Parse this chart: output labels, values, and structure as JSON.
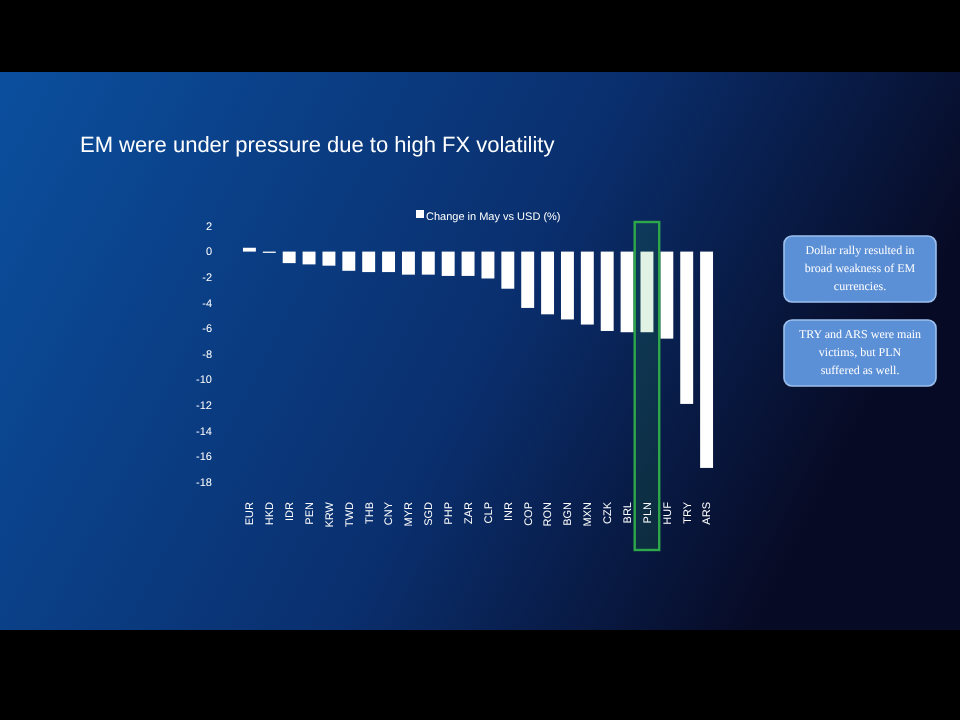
{
  "chart_data": {
    "type": "bar",
    "title": "EM were under pressure due to high FX volatility",
    "categories": [
      "EUR",
      "HKD",
      "IDR",
      "PEN",
      "KRW",
      "TWD",
      "THB",
      "CNY",
      "MYR",
      "SGD",
      "PHP",
      "ZAR",
      "CLP",
      "INR",
      "COP",
      "RON",
      "BGN",
      "MXN",
      "CZK",
      "BRL",
      "PLN",
      "HUF",
      "TRY",
      "ARS"
    ],
    "series": [
      {
        "name": "Change in May vs USD (%)",
        "color": "#ffffff",
        "values": [
          0.3,
          -0.1,
          -0.9,
          -1.0,
          -1.1,
          -1.5,
          -1.6,
          -1.6,
          -1.8,
          -1.8,
          -1.9,
          -1.9,
          -2.1,
          -2.9,
          -4.4,
          -4.9,
          -5.3,
          -5.7,
          -6.2,
          -6.3,
          -6.3,
          -6.8,
          -11.9,
          -16.9
        ]
      }
    ],
    "ylim": [
      -18,
      2
    ],
    "yticks": [
      2,
      0,
      -2,
      -4,
      -6,
      -8,
      -10,
      -12,
      -14,
      -16,
      -18
    ],
    "bands": [
      {
        "axis": "x",
        "from": "PLN",
        "to": "PLN",
        "color": "#2ea84a"
      }
    ],
    "annotations": [
      "Dollar rally resulted in broad weakness of EM currencies.",
      "TRY and ARS were main victims, but PLN suffered as well."
    ],
    "legend": "top",
    "grid": false
  }
}
